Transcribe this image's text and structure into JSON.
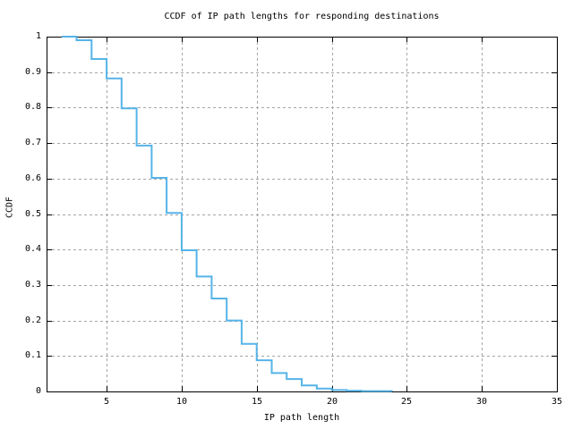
{
  "figure": {
    "background": "#ffffff"
  },
  "chart_data": {
    "type": "line",
    "subtype": "step-ccdf",
    "title": "CCDF of IP path lengths for responding destinations",
    "xlabel": "IP path length",
    "ylabel": "CCDF",
    "xlim": [
      1,
      35
    ],
    "ylim": [
      0,
      1
    ],
    "grid": true,
    "legend": "none",
    "line_color": "#56b4e9",
    "grid_color": "#a5a5a5",
    "axis_color": "#000000",
    "x_ticks": [
      {
        "v": 5,
        "label": "5"
      },
      {
        "v": 10,
        "label": "10"
      },
      {
        "v": 15,
        "label": "15"
      },
      {
        "v": 20,
        "label": "20"
      },
      {
        "v": 25,
        "label": "25"
      },
      {
        "v": 30,
        "label": "30"
      },
      {
        "v": 35,
        "label": "35"
      }
    ],
    "y_ticks": [
      {
        "v": 0,
        "label": "0"
      },
      {
        "v": 0.1,
        "label": "0.1"
      },
      {
        "v": 0.2,
        "label": "0.2"
      },
      {
        "v": 0.3,
        "label": "0.3"
      },
      {
        "v": 0.4,
        "label": "0.4"
      },
      {
        "v": 0.5,
        "label": "0.5"
      },
      {
        "v": 0.6,
        "label": "0.6"
      },
      {
        "v": 0.7,
        "label": "0.7"
      },
      {
        "v": 0.8,
        "label": "0.8"
      },
      {
        "v": 0.9,
        "label": "0.9"
      },
      {
        "v": 1,
        "label": "1"
      }
    ],
    "series": [
      {
        "name": "ccdf",
        "style": "step",
        "x": [
          2,
          3,
          4,
          5,
          6,
          7,
          8,
          9,
          10,
          11,
          12,
          13,
          14,
          15,
          16,
          17,
          18,
          19,
          20,
          21,
          22,
          23,
          24
        ],
        "y": [
          1.0,
          0.99,
          0.937,
          0.882,
          0.798,
          0.693,
          0.602,
          0.503,
          0.398,
          0.324,
          0.262,
          0.2,
          0.134,
          0.088,
          0.052,
          0.035,
          0.017,
          0.008,
          0.004,
          0.002,
          0.001,
          0.001,
          0.0
        ]
      }
    ]
  }
}
